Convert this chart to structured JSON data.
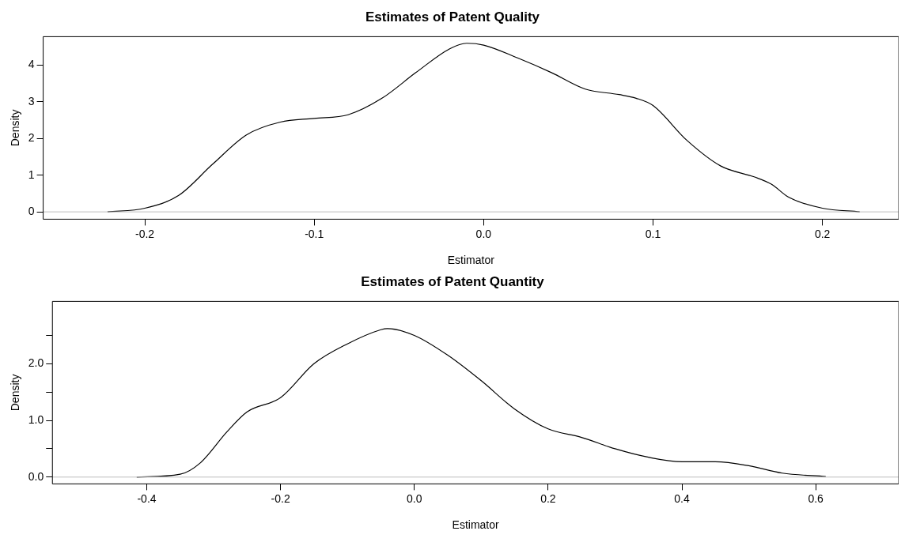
{
  "chart_data": [
    {
      "type": "line",
      "title": "Estimates of Patent Quality",
      "xlabel": "Estimator",
      "ylabel": "Density",
      "x": [
        -0.222,
        -0.2,
        -0.18,
        -0.16,
        -0.14,
        -0.12,
        -0.1,
        -0.08,
        -0.06,
        -0.04,
        -0.02,
        -0.01,
        0.0,
        0.02,
        0.04,
        0.06,
        0.08,
        0.09,
        0.1,
        0.12,
        0.14,
        0.16,
        0.17,
        0.18,
        0.2,
        0.222
      ],
      "series": [
        {
          "color": "#000000",
          "values": [
            0.0,
            0.1,
            0.45,
            1.3,
            2.1,
            2.45,
            2.55,
            2.65,
            3.1,
            3.8,
            4.45,
            4.6,
            4.55,
            4.2,
            3.8,
            3.35,
            3.2,
            3.1,
            2.9,
            1.95,
            1.25,
            0.95,
            0.75,
            0.4,
            0.1,
            0.0
          ]
        }
      ],
      "xlim": [
        -0.26,
        0.245
      ],
      "xticks": [
        {
          "value": -0.2,
          "label": "-0.2"
        },
        {
          "value": -0.1,
          "label": "-0.1"
        },
        {
          "value": 0,
          "label": "0.0"
        },
        {
          "value": 0.1,
          "label": "0.1"
        },
        {
          "value": 0.2,
          "label": "0.2"
        }
      ],
      "ylim": [
        -0.2,
        4.78
      ],
      "yticks": [
        0,
        1,
        2,
        3,
        4
      ],
      "ref_lines": [
        {
          "axis": "y",
          "value": 0,
          "color": "#bebebe"
        }
      ],
      "grid": false,
      "legend": false,
      "marker": "none",
      "line_style": "solid"
    },
    {
      "type": "line",
      "title": "Estimates of Patent Quantity",
      "xlabel": "Estimator",
      "ylabel": "Density",
      "x": [
        -0.415,
        -0.35,
        -0.32,
        -0.28,
        -0.25,
        -0.2,
        -0.15,
        -0.1,
        -0.05,
        -0.04,
        0.0,
        0.05,
        0.1,
        0.15,
        0.2,
        0.25,
        0.3,
        0.35,
        0.4,
        0.45,
        0.5,
        0.55,
        0.615
      ],
      "series": [
        {
          "color": "#000000",
          "values": [
            0.0,
            0.05,
            0.25,
            0.8,
            1.15,
            1.4,
            2.0,
            2.35,
            2.6,
            2.62,
            2.5,
            2.15,
            1.7,
            1.2,
            0.85,
            0.7,
            0.5,
            0.35,
            0.27,
            0.27,
            0.2,
            0.07,
            0.01
          ]
        }
      ],
      "xlim": [
        -0.541,
        0.724
      ],
      "xticks": [
        {
          "value": -0.4,
          "label": "-0.4"
        },
        {
          "value": -0.2,
          "label": "-0.2"
        },
        {
          "value": 0,
          "label": "0.0"
        },
        {
          "value": 0.2,
          "label": "0.2"
        },
        {
          "value": 0.4,
          "label": "0.4"
        },
        {
          "value": 0.6,
          "label": "0.6"
        }
      ],
      "ylim": [
        -0.12,
        3.1
      ],
      "yticks": [
        {
          "value": 0,
          "label": "0.0"
        },
        {
          "value": 0.5,
          "label": null
        },
        {
          "value": 1,
          "label": "1.0"
        },
        {
          "value": 1.5,
          "label": null
        },
        {
          "value": 2,
          "label": "2.0"
        },
        {
          "value": 2.5,
          "label": null
        }
      ],
      "ref_lines": [
        {
          "axis": "y",
          "value": 0,
          "color": "#bebebe"
        }
      ],
      "grid": false,
      "legend": false,
      "marker": "none",
      "line_style": "solid"
    }
  ]
}
